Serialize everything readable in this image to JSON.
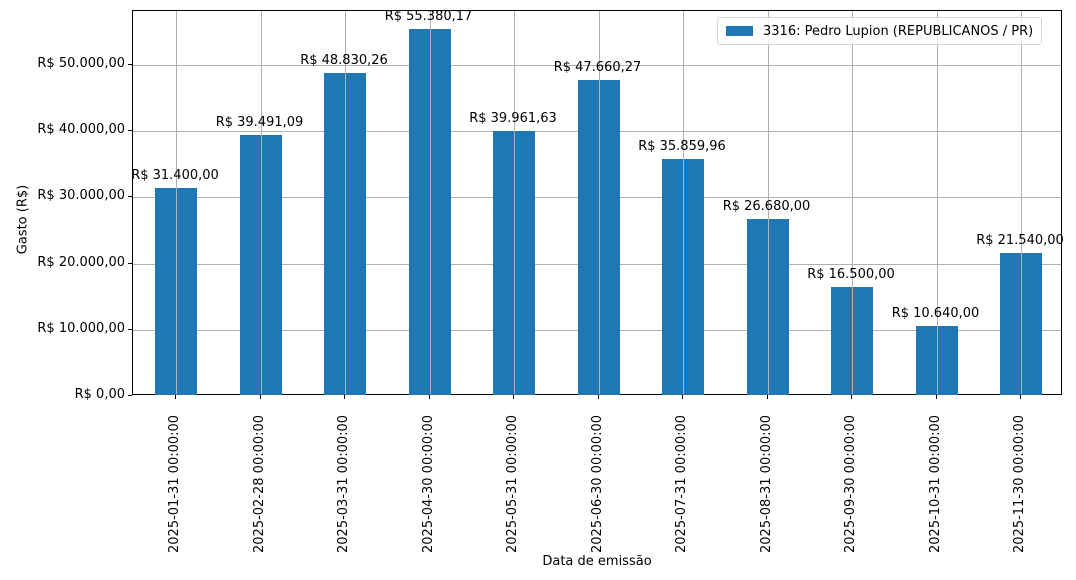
{
  "chart_data": {
    "type": "bar",
    "title": "",
    "xlabel": "Data de emissão",
    "ylabel": "Gasto (R$)",
    "ylim": [
      0,
      58150
    ],
    "grid": true,
    "legend_position": "upper right",
    "bar_color": "#1f77b4",
    "series": [
      {
        "name": "3316: Pedro Lupion (REPUBLICANOS / PR)",
        "values": [
          31400.0,
          39491.09,
          48830.26,
          55380.17,
          39961.63,
          47660.27,
          35859.96,
          26680.0,
          16500.0,
          10640.0,
          21540.0
        ]
      }
    ],
    "categories": [
      "2025-01-31 00:00:00",
      "2025-02-28 00:00:00",
      "2025-03-31 00:00:00",
      "2025-04-30 00:00:00",
      "2025-05-31 00:00:00",
      "2025-06-30 00:00:00",
      "2025-07-31 00:00:00",
      "2025-08-31 00:00:00",
      "2025-09-30 00:00:00",
      "2025-10-31 00:00:00",
      "2025-11-30 00:00:00"
    ],
    "bar_labels": [
      "R$ 31.400,00",
      "R$ 39.491,09",
      "R$ 48.830,26",
      "R$ 55.380,17",
      "R$ 39.961,63",
      "R$ 47.660,27",
      "R$ 35.859,96",
      "R$ 26.680,00",
      "R$ 16.500,00",
      "R$ 10.640,00",
      "R$ 21.540,00"
    ],
    "yticks": [
      0,
      10000,
      20000,
      30000,
      40000,
      50000
    ],
    "ytick_labels": [
      "R$ 0,00",
      "R$ 10.000,00",
      "R$ 20.000,00",
      "R$ 30.000,00",
      "R$ 40.000,00",
      "R$ 50.000,00"
    ]
  }
}
